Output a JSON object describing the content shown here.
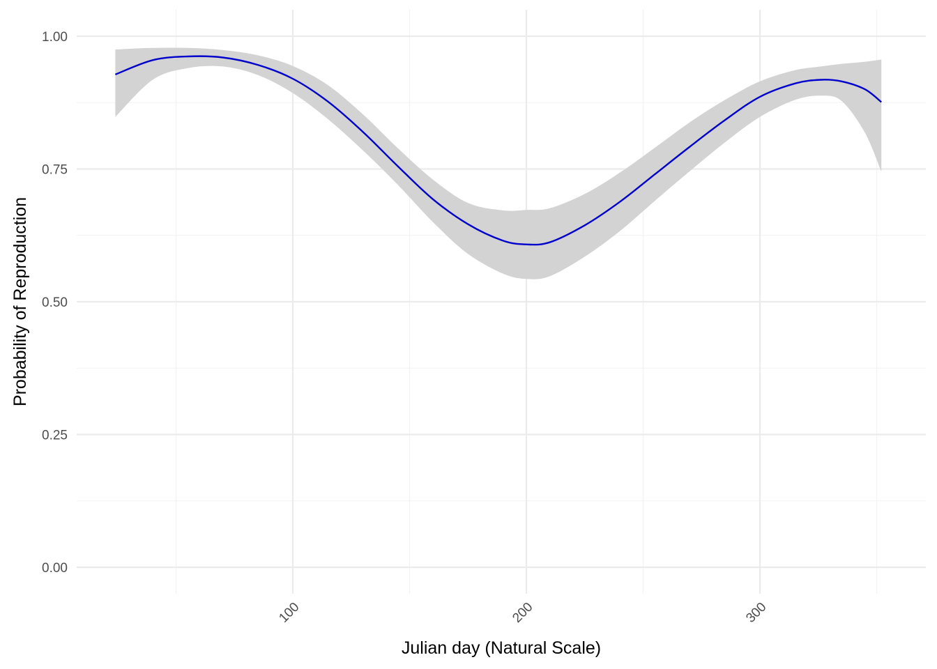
{
  "chart_data": {
    "type": "line",
    "title": "",
    "xlabel": "Julian day (Natural Scale)",
    "ylabel": "Probability of Reproduction",
    "xlim": [
      24,
      352
    ],
    "ylim": [
      0,
      1
    ],
    "x_ticks": [
      100,
      200,
      300
    ],
    "x_tick_labels": [
      "100",
      "200",
      "300"
    ],
    "y_ticks": [
      0,
      0.25,
      0.5,
      0.75,
      1.0
    ],
    "y_tick_labels": [
      "0.00",
      "0.25",
      "0.50",
      "0.75",
      "1.00"
    ],
    "grid": true,
    "legend": "none",
    "colors": {
      "line": "#0000cc",
      "ribbon": "#d3d3d3"
    },
    "series": [
      {
        "x": [
          24,
          40,
          55,
          70,
          85,
          100,
          115,
          130,
          145,
          160,
          175,
          190,
          200,
          210,
          225,
          240,
          255,
          270,
          285,
          300,
          315,
          326,
          335,
          345,
          352
        ],
        "y": [
          0.928,
          0.955,
          0.962,
          0.96,
          0.946,
          0.92,
          0.877,
          0.82,
          0.755,
          0.693,
          0.646,
          0.615,
          0.608,
          0.612,
          0.644,
          0.688,
          0.74,
          0.792,
          0.842,
          0.886,
          0.911,
          0.918,
          0.915,
          0.9,
          0.876
        ],
        "lower": [
          0.848,
          0.918,
          0.94,
          0.943,
          0.927,
          0.893,
          0.844,
          0.785,
          0.72,
          0.65,
          0.59,
          0.553,
          0.543,
          0.548,
          0.585,
          0.633,
          0.69,
          0.746,
          0.8,
          0.848,
          0.88,
          0.888,
          0.878,
          0.818,
          0.745
        ],
        "upper": [
          0.975,
          0.978,
          0.978,
          0.974,
          0.964,
          0.944,
          0.908,
          0.853,
          0.789,
          0.73,
          0.686,
          0.672,
          0.673,
          0.676,
          0.703,
          0.743,
          0.79,
          0.838,
          0.88,
          0.915,
          0.936,
          0.943,
          0.948,
          0.952,
          0.956
        ]
      }
    ]
  }
}
